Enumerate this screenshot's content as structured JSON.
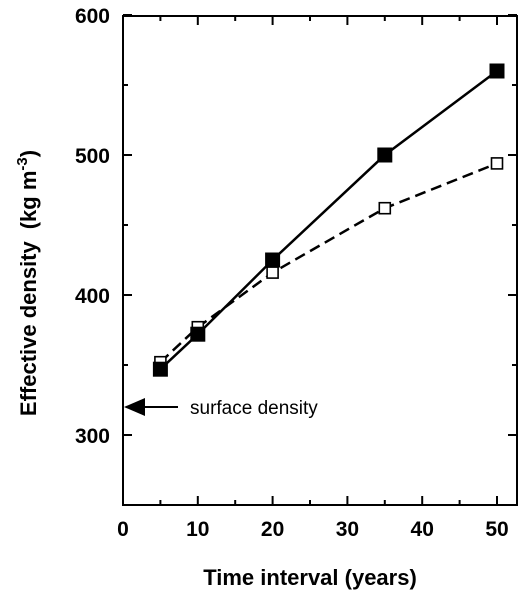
{
  "chart_data": {
    "type": "line",
    "xlabel": "Time interval (years)",
    "ylabel_main": "Effective density",
    "ylabel_unit_pre": "(kg m",
    "ylabel_unit_sup": "-3",
    "ylabel_unit_post": ")",
    "xlim": [
      0,
      55
    ],
    "ylim": [
      250,
      600
    ],
    "x_ticks": [
      0,
      10,
      20,
      30,
      40,
      50
    ],
    "y_ticks": [
      300,
      400,
      500,
      600
    ],
    "grid": false,
    "legend": "none",
    "series": [
      {
        "style": "solid",
        "marker": "filled-square",
        "color": "#000000",
        "x": [
          5,
          10,
          20,
          35,
          50
        ],
        "y": [
          347,
          372,
          425,
          500,
          560
        ]
      },
      {
        "style": "dashed",
        "marker": "open-square",
        "color": "#000000",
        "x": [
          5,
          10,
          20,
          35,
          50
        ],
        "y": [
          352,
          377,
          416,
          462,
          494
        ]
      }
    ],
    "annotations": [
      {
        "text": "surface density",
        "x": 0,
        "y": 320,
        "arrow": "left"
      }
    ]
  }
}
